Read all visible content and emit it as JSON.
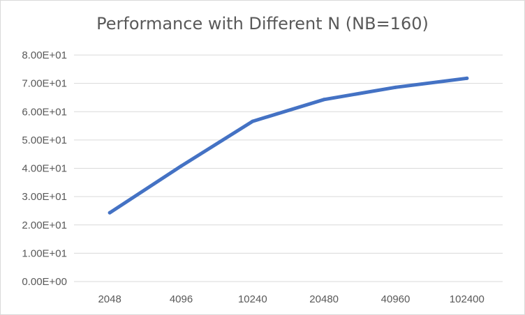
{
  "chart_data": {
    "type": "line",
    "title": "Performance  with Different N (NB=160)",
    "xlabel": "",
    "ylabel": "",
    "categories": [
      "2048",
      "4096",
      "10240",
      "20480",
      "40960",
      "102400"
    ],
    "series": [
      {
        "values": [
          24.3,
          40.8,
          56.6,
          64.3,
          68.6,
          71.8
        ],
        "color": "#4472c4"
      }
    ],
    "ylim": [
      0,
      80
    ],
    "yticks": [
      "0.00E+00",
      "1.00E+01",
      "2.00E+01",
      "3.00E+01",
      "4.00E+01",
      "5.00E+01",
      "6.00E+01",
      "7.00E+01",
      "8.00E+01"
    ],
    "grid": true,
    "legend": "none"
  }
}
